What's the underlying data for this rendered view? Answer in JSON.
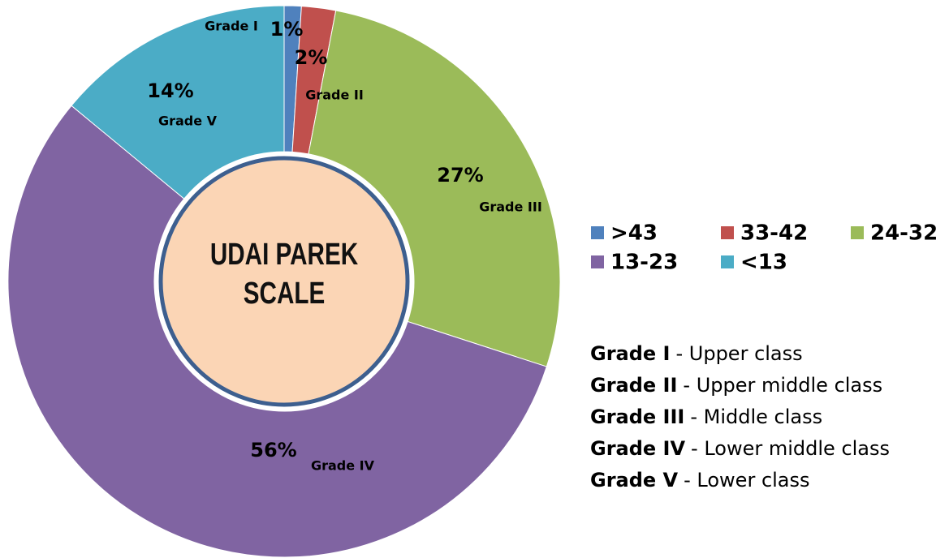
{
  "chart_data": {
    "type": "donut",
    "title": "UDAI PAREK SCALE",
    "categories": [
      ">43",
      "33-42",
      "24-32",
      "13-23",
      "<13"
    ],
    "labels": [
      "Grade I",
      "Grade II",
      "Grade III",
      "Grade IV",
      "Grade V"
    ],
    "values": [
      1,
      2,
      27,
      56,
      14
    ],
    "value_labels": [
      "1%",
      "2%",
      "27%",
      "56%",
      "14%"
    ],
    "colors": [
      "#4f81bd",
      "#c0504d",
      "#9bbb59",
      "#8064a2",
      "#4bacc6"
    ],
    "legend": "right",
    "notes": [
      {
        "term": "Grade I",
        "desc": "- Upper class"
      },
      {
        "term": "Grade II",
        "desc": "- Upper middle class"
      },
      {
        "term": "Grade III",
        "desc": "- Middle class"
      },
      {
        "term": "Grade IV",
        "desc": "- Lower middle class"
      },
      {
        "term": "Grade V",
        "desc": "- Lower class"
      }
    ]
  }
}
